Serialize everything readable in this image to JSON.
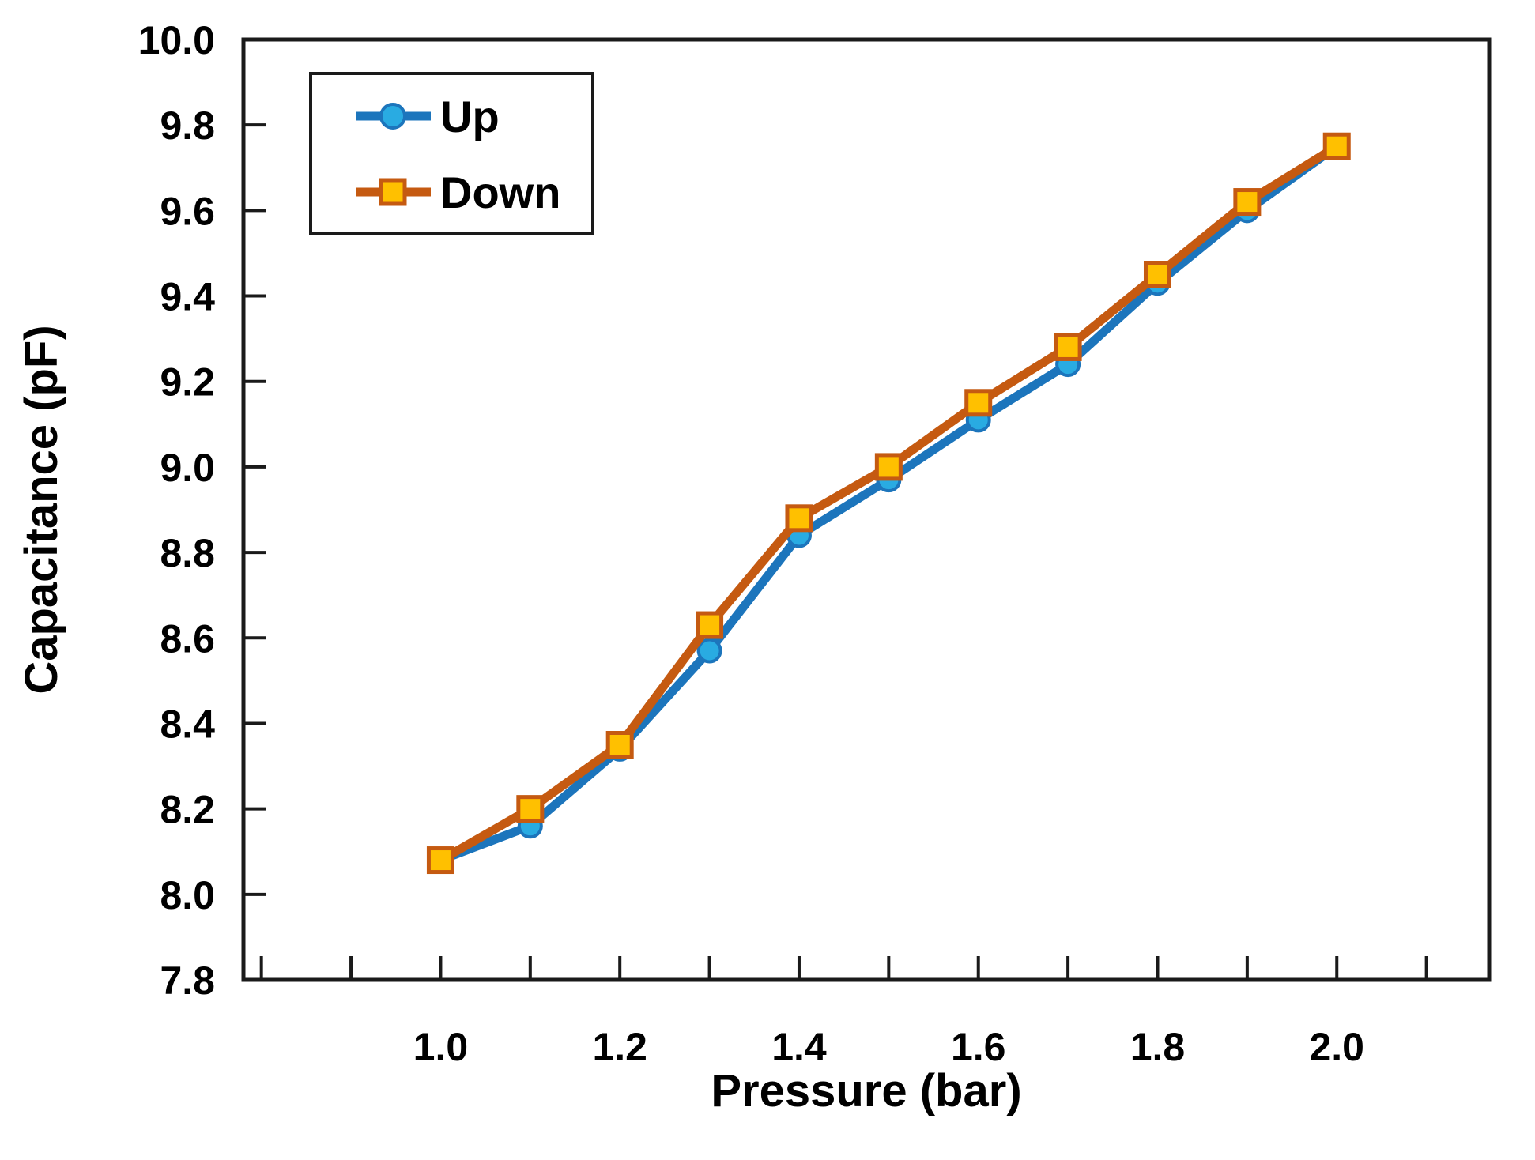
{
  "figure": {
    "background": "#ffffff",
    "axis_color": "#1a1a1a",
    "legend": {
      "border_color": "#1a1a1a",
      "fill": "#ffffff"
    }
  },
  "chart_data": {
    "type": "line",
    "title": "",
    "xlabel": "Pressure (bar)",
    "ylabel": "Capacitance (pF)",
    "grid": false,
    "legend_position": "top-left",
    "x": [
      1.0,
      1.1,
      1.2,
      1.3,
      1.4,
      1.5,
      1.6,
      1.7,
      1.8,
      1.9,
      2.0
    ],
    "series": [
      {
        "name": "Up",
        "marker": "circle",
        "line_color": "#1C75BC",
        "marker_fill": "#29ABE2",
        "marker_stroke": "#1C75BC",
        "values": [
          8.08,
          8.16,
          8.34,
          8.57,
          8.84,
          8.97,
          9.11,
          9.24,
          9.43,
          9.6,
          9.75
        ]
      },
      {
        "name": "Down",
        "marker": "square",
        "line_color": "#C55A11",
        "marker_fill": "#FFC000",
        "marker_stroke": "#C55A11",
        "values": [
          8.08,
          8.2,
          8.35,
          8.63,
          8.88,
          9.0,
          9.15,
          9.28,
          9.45,
          9.62,
          9.75
        ]
      }
    ],
    "x_axis": {
      "min": 0.78,
      "max": 2.17,
      "minor_ticks": [
        0.8,
        0.9,
        1.0,
        1.1,
        1.2,
        1.3,
        1.4,
        1.5,
        1.6,
        1.7,
        1.8,
        1.9,
        2.0,
        2.1
      ],
      "labeled_ticks": [
        {
          "value": 1.0,
          "label": "1.0"
        },
        {
          "value": 1.2,
          "label": "1.2"
        },
        {
          "value": 1.4,
          "label": "1.4"
        },
        {
          "value": 1.6,
          "label": "1.6"
        },
        {
          "value": 1.8,
          "label": "1.8"
        },
        {
          "value": 2.0,
          "label": "2.0"
        }
      ]
    },
    "y_axis": {
      "min": 7.8,
      "max": 10.0,
      "ticks": [
        {
          "value": 7.8,
          "label": "7.8"
        },
        {
          "value": 8.0,
          "label": "8.0"
        },
        {
          "value": 8.2,
          "label": "8.2"
        },
        {
          "value": 8.4,
          "label": "8.4"
        },
        {
          "value": 8.6,
          "label": "8.6"
        },
        {
          "value": 8.8,
          "label": "8.8"
        },
        {
          "value": 9.0,
          "label": "9.0"
        },
        {
          "value": 9.2,
          "label": "9.2"
        },
        {
          "value": 9.4,
          "label": "9.4"
        },
        {
          "value": 9.6,
          "label": "9.6"
        },
        {
          "value": 9.8,
          "label": "9.8"
        },
        {
          "value": 10.0,
          "label": "10.0"
        }
      ]
    }
  }
}
